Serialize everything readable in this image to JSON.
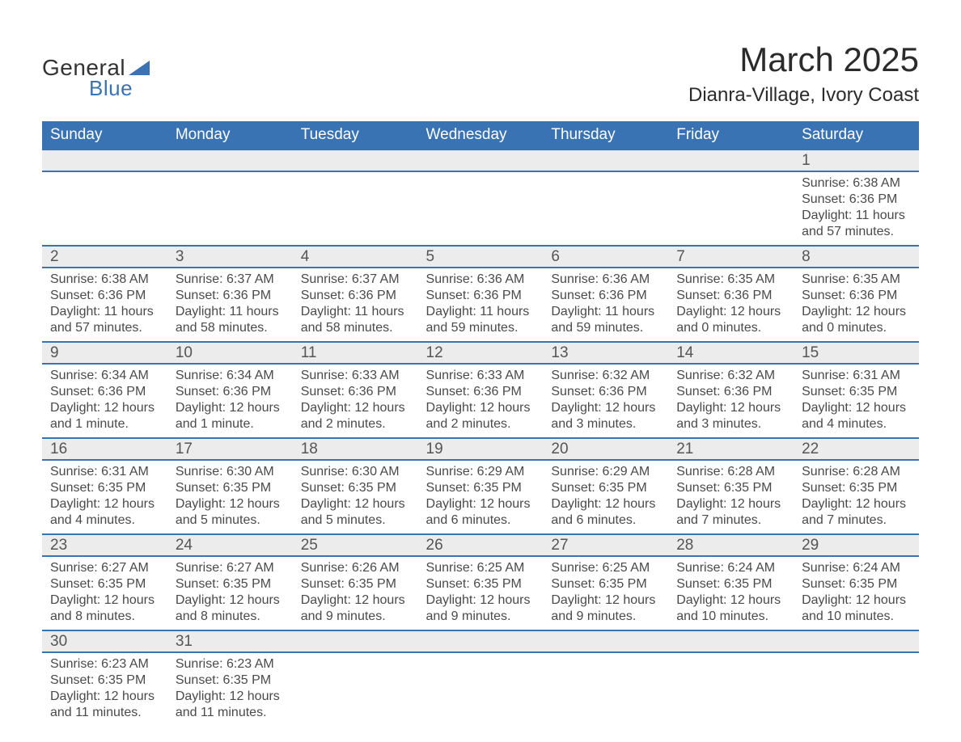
{
  "logo": {
    "part1": "General",
    "part2": "Blue",
    "text_color": "#333333",
    "accent_color": "#3a73b3"
  },
  "title": "March 2025",
  "location": "Dianra-Village, Ivory Coast",
  "title_fontsize": 42,
  "location_fontsize": 24,
  "header_bg": "#3a73b3",
  "header_fg": "#ffffff",
  "daynum_bg": "#ececec",
  "body_fg": "#4a4a4a",
  "row_border_color": "#3a73b3",
  "cell_fontsize": 16,
  "days": [
    "Sunday",
    "Monday",
    "Tuesday",
    "Wednesday",
    "Thursday",
    "Friday",
    "Saturday"
  ],
  "weeks": [
    [
      null,
      null,
      null,
      null,
      null,
      null,
      {
        "n": "1",
        "sunrise": "Sunrise: 6:38 AM",
        "sunset": "Sunset: 6:36 PM",
        "daylight": "Daylight: 11 hours and 57 minutes."
      }
    ],
    [
      {
        "n": "2",
        "sunrise": "Sunrise: 6:38 AM",
        "sunset": "Sunset: 6:36 PM",
        "daylight": "Daylight: 11 hours and 57 minutes."
      },
      {
        "n": "3",
        "sunrise": "Sunrise: 6:37 AM",
        "sunset": "Sunset: 6:36 PM",
        "daylight": "Daylight: 11 hours and 58 minutes."
      },
      {
        "n": "4",
        "sunrise": "Sunrise: 6:37 AM",
        "sunset": "Sunset: 6:36 PM",
        "daylight": "Daylight: 11 hours and 58 minutes."
      },
      {
        "n": "5",
        "sunrise": "Sunrise: 6:36 AM",
        "sunset": "Sunset: 6:36 PM",
        "daylight": "Daylight: 11 hours and 59 minutes."
      },
      {
        "n": "6",
        "sunrise": "Sunrise: 6:36 AM",
        "sunset": "Sunset: 6:36 PM",
        "daylight": "Daylight: 11 hours and 59 minutes."
      },
      {
        "n": "7",
        "sunrise": "Sunrise: 6:35 AM",
        "sunset": "Sunset: 6:36 PM",
        "daylight": "Daylight: 12 hours and 0 minutes."
      },
      {
        "n": "8",
        "sunrise": "Sunrise: 6:35 AM",
        "sunset": "Sunset: 6:36 PM",
        "daylight": "Daylight: 12 hours and 0 minutes."
      }
    ],
    [
      {
        "n": "9",
        "sunrise": "Sunrise: 6:34 AM",
        "sunset": "Sunset: 6:36 PM",
        "daylight": "Daylight: 12 hours and 1 minute."
      },
      {
        "n": "10",
        "sunrise": "Sunrise: 6:34 AM",
        "sunset": "Sunset: 6:36 PM",
        "daylight": "Daylight: 12 hours and 1 minute."
      },
      {
        "n": "11",
        "sunrise": "Sunrise: 6:33 AM",
        "sunset": "Sunset: 6:36 PM",
        "daylight": "Daylight: 12 hours and 2 minutes."
      },
      {
        "n": "12",
        "sunrise": "Sunrise: 6:33 AM",
        "sunset": "Sunset: 6:36 PM",
        "daylight": "Daylight: 12 hours and 2 minutes."
      },
      {
        "n": "13",
        "sunrise": "Sunrise: 6:32 AM",
        "sunset": "Sunset: 6:36 PM",
        "daylight": "Daylight: 12 hours and 3 minutes."
      },
      {
        "n": "14",
        "sunrise": "Sunrise: 6:32 AM",
        "sunset": "Sunset: 6:36 PM",
        "daylight": "Daylight: 12 hours and 3 minutes."
      },
      {
        "n": "15",
        "sunrise": "Sunrise: 6:31 AM",
        "sunset": "Sunset: 6:35 PM",
        "daylight": "Daylight: 12 hours and 4 minutes."
      }
    ],
    [
      {
        "n": "16",
        "sunrise": "Sunrise: 6:31 AM",
        "sunset": "Sunset: 6:35 PM",
        "daylight": "Daylight: 12 hours and 4 minutes."
      },
      {
        "n": "17",
        "sunrise": "Sunrise: 6:30 AM",
        "sunset": "Sunset: 6:35 PM",
        "daylight": "Daylight: 12 hours and 5 minutes."
      },
      {
        "n": "18",
        "sunrise": "Sunrise: 6:30 AM",
        "sunset": "Sunset: 6:35 PM",
        "daylight": "Daylight: 12 hours and 5 minutes."
      },
      {
        "n": "19",
        "sunrise": "Sunrise: 6:29 AM",
        "sunset": "Sunset: 6:35 PM",
        "daylight": "Daylight: 12 hours and 6 minutes."
      },
      {
        "n": "20",
        "sunrise": "Sunrise: 6:29 AM",
        "sunset": "Sunset: 6:35 PM",
        "daylight": "Daylight: 12 hours and 6 minutes."
      },
      {
        "n": "21",
        "sunrise": "Sunrise: 6:28 AM",
        "sunset": "Sunset: 6:35 PM",
        "daylight": "Daylight: 12 hours and 7 minutes."
      },
      {
        "n": "22",
        "sunrise": "Sunrise: 6:28 AM",
        "sunset": "Sunset: 6:35 PM",
        "daylight": "Daylight: 12 hours and 7 minutes."
      }
    ],
    [
      {
        "n": "23",
        "sunrise": "Sunrise: 6:27 AM",
        "sunset": "Sunset: 6:35 PM",
        "daylight": "Daylight: 12 hours and 8 minutes."
      },
      {
        "n": "24",
        "sunrise": "Sunrise: 6:27 AM",
        "sunset": "Sunset: 6:35 PM",
        "daylight": "Daylight: 12 hours and 8 minutes."
      },
      {
        "n": "25",
        "sunrise": "Sunrise: 6:26 AM",
        "sunset": "Sunset: 6:35 PM",
        "daylight": "Daylight: 12 hours and 9 minutes."
      },
      {
        "n": "26",
        "sunrise": "Sunrise: 6:25 AM",
        "sunset": "Sunset: 6:35 PM",
        "daylight": "Daylight: 12 hours and 9 minutes."
      },
      {
        "n": "27",
        "sunrise": "Sunrise: 6:25 AM",
        "sunset": "Sunset: 6:35 PM",
        "daylight": "Daylight: 12 hours and 9 minutes."
      },
      {
        "n": "28",
        "sunrise": "Sunrise: 6:24 AM",
        "sunset": "Sunset: 6:35 PM",
        "daylight": "Daylight: 12 hours and 10 minutes."
      },
      {
        "n": "29",
        "sunrise": "Sunrise: 6:24 AM",
        "sunset": "Sunset: 6:35 PM",
        "daylight": "Daylight: 12 hours and 10 minutes."
      }
    ],
    [
      {
        "n": "30",
        "sunrise": "Sunrise: 6:23 AM",
        "sunset": "Sunset: 6:35 PM",
        "daylight": "Daylight: 12 hours and 11 minutes."
      },
      {
        "n": "31",
        "sunrise": "Sunrise: 6:23 AM",
        "sunset": "Sunset: 6:35 PM",
        "daylight": "Daylight: 12 hours and 11 minutes."
      },
      null,
      null,
      null,
      null,
      null
    ]
  ]
}
